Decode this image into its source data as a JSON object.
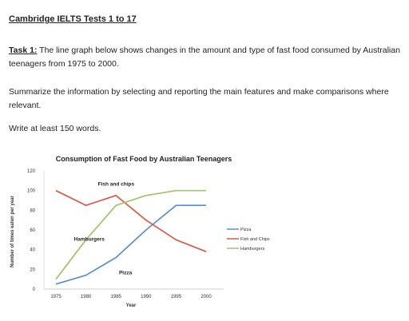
{
  "header": {
    "title": "Cambridge IELTS Tests 1 to 17"
  },
  "task": {
    "label": "Task 1:",
    "prompt": " The line graph below shows changes in the amount and type of fast food consumed by Australian teenagers from 1975 to 2000.",
    "instruction": "Summarize the information by selecting and reporting the main features and make comparisons where relevant.",
    "word_limit": "Write at least 150 words."
  },
  "chart_data": {
    "type": "line",
    "title": "Consumption of Fast Food by Australian Teenagers",
    "xlabel": "Year",
    "ylabel": "Number of times eaten per year",
    "x": [
      1975,
      1980,
      1985,
      1990,
      1995,
      2000
    ],
    "xticks": [
      "1975",
      "1980",
      "1985",
      "1990",
      "1995",
      "2000"
    ],
    "yticks": [
      "0",
      "20",
      "40",
      "60",
      "80",
      "100",
      "120"
    ],
    "ylim": [
      0,
      120
    ],
    "grid": false,
    "legend": "right",
    "series": [
      {
        "name": "Pizza",
        "color": "#5b8fc9",
        "values": [
          5,
          14,
          32,
          60,
          85,
          85
        ]
      },
      {
        "name": "Fish and Chips",
        "color": "#d65c4b",
        "values": [
          100,
          85,
          95,
          70,
          50,
          38
        ]
      },
      {
        "name": "Hamburgers",
        "color": "#9fc46a",
        "values": [
          10,
          50,
          85,
          95,
          100,
          100
        ]
      }
    ],
    "annotations": [
      {
        "text": "Fish and chips",
        "x": 1982,
        "y": 105
      },
      {
        "text": "Hamburgers",
        "x": 1978,
        "y": 49
      },
      {
        "text": "Pizza",
        "x": 1985.5,
        "y": 15
      }
    ]
  }
}
